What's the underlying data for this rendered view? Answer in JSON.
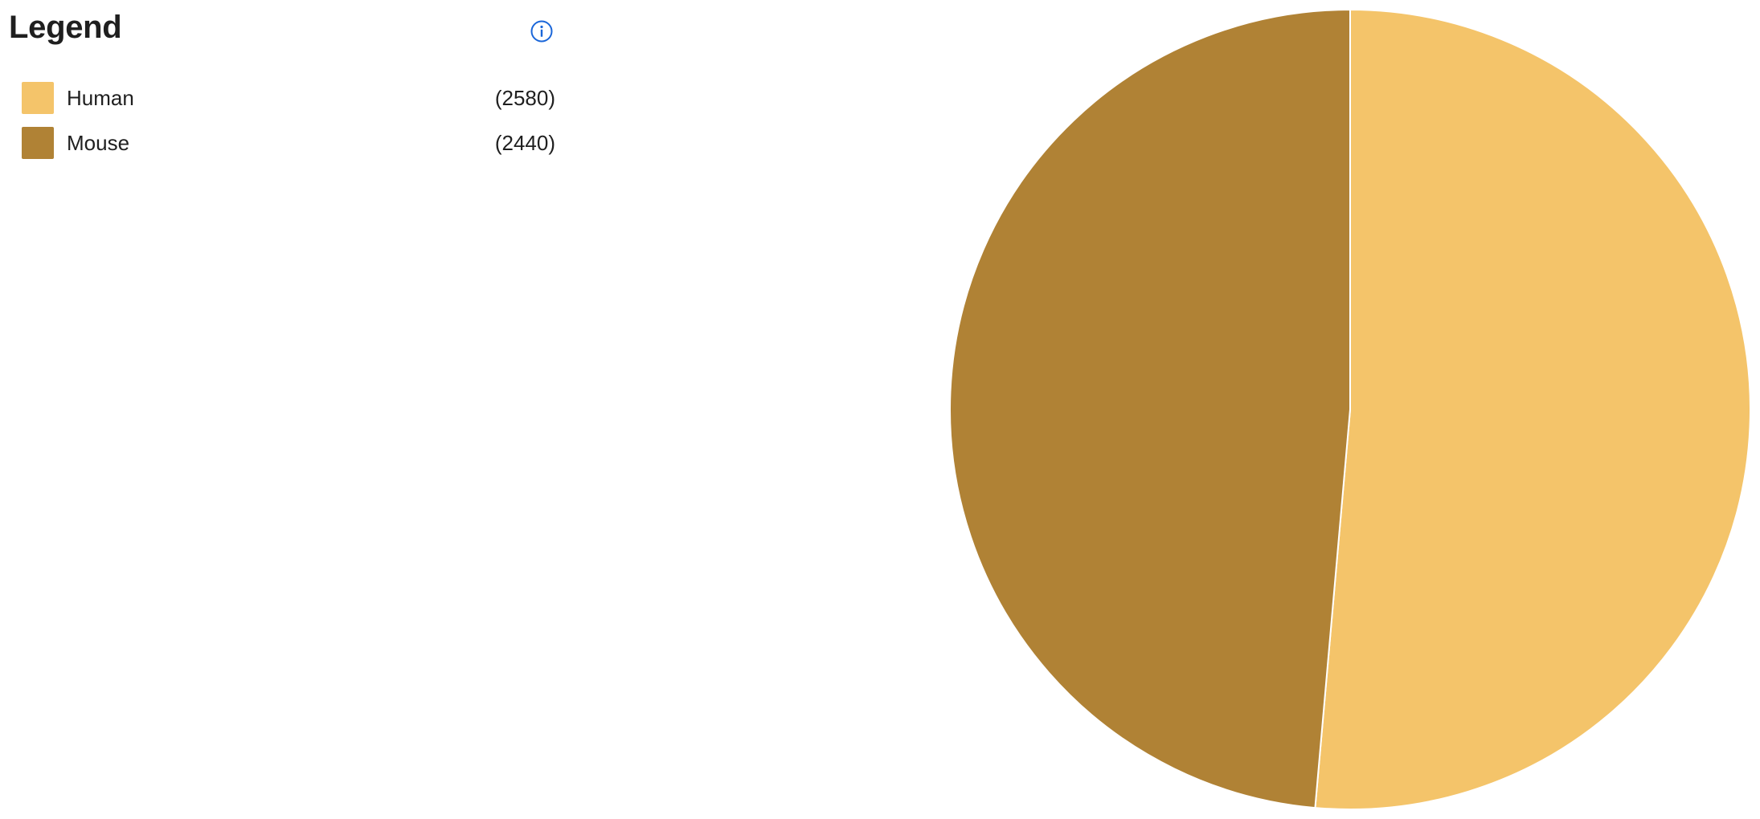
{
  "legend": {
    "title": "Legend",
    "info_icon": "info-circle-icon",
    "info_icon_color": "#1a66d9"
  },
  "chart_data": {
    "type": "pie",
    "title": "",
    "categories": [
      "Human",
      "Mouse"
    ],
    "values": [
      2580,
      2440
    ],
    "count_labels": [
      "(2580)",
      "(2440)"
    ],
    "colors": [
      "#f4c46a",
      "#b08235"
    ],
    "legend_placement": "left"
  }
}
